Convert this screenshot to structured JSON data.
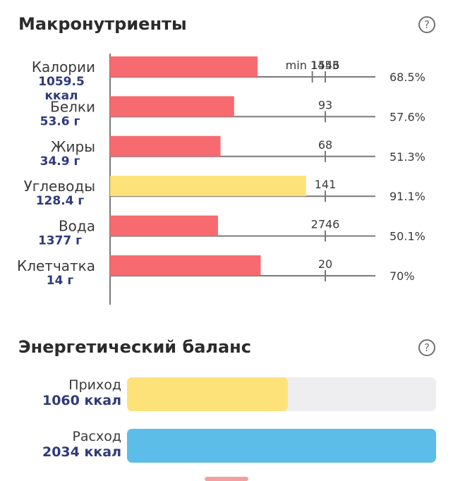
{
  "macros": {
    "title": "Макронутриенты",
    "help_icon": "?"
  },
  "chart_data": {
    "type": "bar",
    "orientation": "horizontal",
    "title": "Макронутриенты",
    "categories": [
      "Калории",
      "Белки",
      "Жиры",
      "Углеводы",
      "Вода",
      "Клетчатка"
    ],
    "series": [
      {
        "values": [
          1059.5,
          53.6,
          34.9,
          128.4,
          1377,
          14
        ],
        "value_labels": [
          "1059.5\nккал",
          "53.6 г",
          "34.9 г",
          "128.4 г",
          "1377 г",
          "14 г"
        ],
        "targets": [
          1546,
          93,
          68,
          141,
          2746,
          20
        ],
        "target_labels": [
          "1546",
          "93",
          "68",
          "141",
          "2746",
          "20"
        ],
        "min_marker": [
          {
            "label": "min 1453",
            "value": 1453
          },
          null,
          null,
          null,
          null,
          null
        ],
        "percent_labels": [
          "68.5%",
          "57.6%",
          "51.3%",
          "91.1%",
          "50.1%",
          "70%"
        ],
        "colors": [
          "#f76a6f",
          "#f76a6f",
          "#f76a6f",
          "#fde27a",
          "#f76a6f",
          "#f76a6f"
        ]
      }
    ],
    "grid": false
  },
  "energy": {
    "title": "Энергетический баланс",
    "help_icon": "?",
    "rows": [
      {
        "name": "Приход",
        "value": "1060 ккал",
        "fraction": 0.52,
        "color": "#fde27a"
      },
      {
        "name": "Расход",
        "value": "2034 ккал",
        "fraction": 1.0,
        "color": "#5bbde8"
      }
    ]
  },
  "colors": {
    "axis": "#7a7a7a",
    "value_text": "#2e3a7a",
    "label_text": "#3a3a3a"
  }
}
